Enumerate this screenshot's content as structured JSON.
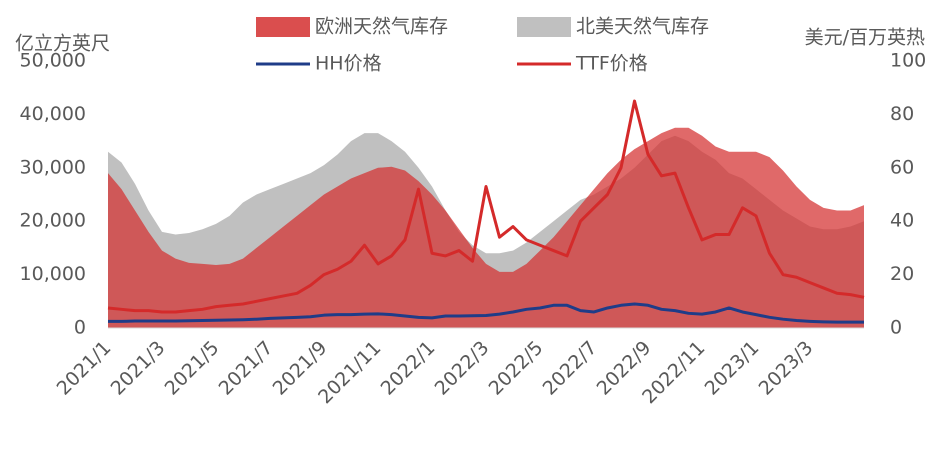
{
  "chart_data": {
    "type": "area",
    "y_label": "亿立方英尺",
    "y2_label": "美元/百万英热",
    "categories": [
      "2021/1",
      null,
      null,
      null,
      "2021/3",
      null,
      null,
      null,
      "2021/5",
      null,
      null,
      null,
      "2021/7",
      null,
      null,
      null,
      "2021/9",
      null,
      null,
      null,
      "2021/11",
      null,
      null,
      null,
      "2022/1",
      null,
      null,
      null,
      "2022/3",
      null,
      null,
      null,
      "2022/5",
      null,
      null,
      null,
      "2022/7",
      null,
      null,
      null,
      "2022/9",
      null,
      null,
      null,
      "2022/11",
      null,
      null,
      null,
      "2023/1",
      null,
      null,
      null,
      "2023/3",
      null,
      null,
      null,
      null
    ],
    "ylim": [
      0,
      50000
    ],
    "yticks": [
      0,
      {
        "value": 10000,
        "label": "10,000"
      },
      {
        "value": 20000,
        "label": "20,000"
      },
      {
        "value": 30000,
        "label": "30,000"
      },
      {
        "value": 40000,
        "label": "40,000"
      },
      {
        "value": 50000,
        "label": "50,000"
      }
    ],
    "y2lim": [
      0,
      100
    ],
    "y2ticks": [
      0,
      20,
      40,
      60,
      80,
      100
    ],
    "series": [
      {
        "name": "北美天然气库存",
        "type": "area",
        "color": "#c0c0c0",
        "values": [
          33000,
          31000,
          27000,
          22000,
          18000,
          17500,
          17800,
          18500,
          19500,
          21000,
          23500,
          25000,
          26000,
          27000,
          28000,
          29000,
          30500,
          32500,
          35000,
          36500,
          36500,
          35000,
          33000,
          30000,
          26500,
          22000,
          18000,
          15500,
          14000,
          14000,
          14500,
          16000,
          18000,
          20000,
          22000,
          24000,
          25000,
          26500,
          28000,
          30000,
          32500,
          35000,
          36000,
          35000,
          33000,
          31500,
          29000,
          28000,
          26000,
          24000,
          22000,
          20500,
          19000,
          18500,
          18500,
          19000,
          20000
        ]
      },
      {
        "name": "欧洲天然气库存",
        "type": "area",
        "color": "#d42f2f",
        "values": [
          29000,
          26000,
          22000,
          18000,
          14500,
          13000,
          12200,
          12000,
          11800,
          12000,
          13000,
          15000,
          17000,
          19000,
          21000,
          23000,
          25000,
          26500,
          28000,
          29000,
          30000,
          30200,
          29500,
          27500,
          25000,
          22000,
          18500,
          15000,
          12000,
          10500,
          10500,
          12000,
          14500,
          17000,
          20000,
          23000,
          26000,
          29000,
          31500,
          33500,
          35000,
          36500,
          37500,
          37500,
          36000,
          34000,
          33000,
          33000,
          33000,
          32000,
          29500,
          26500,
          24000,
          22500,
          22000,
          22000,
          23000
        ]
      },
      {
        "name": "HH价格",
        "type": "line",
        "axis": "y2",
        "color": "#1f3c88",
        "values": [
          2.5,
          2.5,
          2.6,
          2.6,
          2.6,
          2.6,
          2.7,
          2.8,
          2.9,
          3,
          3.1,
          3.3,
          3.6,
          3.8,
          4,
          4.2,
          4.8,
          5,
          5,
          5.2,
          5.3,
          5,
          4.5,
          4,
          3.8,
          4.5,
          4.5,
          4.6,
          4.7,
          5.2,
          6,
          7,
          7.5,
          8.5,
          8.5,
          6.5,
          6,
          7.5,
          8.5,
          9,
          8.5,
          7,
          6.5,
          5.5,
          5.2,
          6,
          7.5,
          6,
          5,
          4,
          3.3,
          2.8,
          2.5,
          2.3,
          2.2,
          2.2,
          2.2
        ]
      },
      {
        "name": "TTF价格",
        "type": "line",
        "axis": "y2",
        "color": "#d42a2a",
        "values": [
          7.5,
          7,
          6.5,
          6.5,
          6,
          6,
          6.5,
          7,
          8,
          8.5,
          9,
          10,
          11,
          12,
          13,
          16,
          20,
          22,
          25,
          31,
          24,
          27,
          33,
          52,
          28,
          27,
          29,
          25,
          53,
          34,
          38,
          33,
          31,
          29,
          27,
          40,
          45,
          50,
          60,
          85,
          65,
          57,
          58,
          45,
          33,
          35,
          35,
          45,
          42,
          28,
          20,
          19,
          17,
          15,
          13,
          12.5,
          11.5
        ]
      }
    ]
  }
}
